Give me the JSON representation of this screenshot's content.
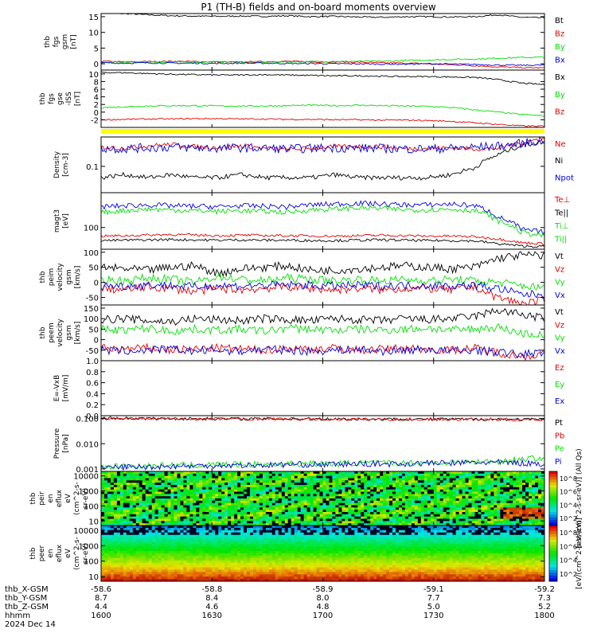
{
  "title": "P1 (TH-B) fields and on-board moments overview",
  "colors": {
    "black": "#000000",
    "red": "#e00000",
    "green": "#00e000",
    "blue": "#0000e0",
    "yellow": "#ffff00"
  },
  "chart_data": [
    {
      "type": "line",
      "ylabel": [
        "thb",
        "fgs",
        "gsm",
        "[nT]"
      ],
      "ylim": [
        -2,
        16
      ],
      "yticks": [
        15,
        10,
        5,
        0
      ],
      "series": [
        {
          "name": "Bt",
          "color": "red",
          "hidden": true
        },
        {
          "name": "Bt",
          "color": "black",
          "values": [
            16.2,
            16.0,
            15.6,
            15.3,
            15.2,
            15.1,
            15.2,
            15.1,
            15.3,
            15.0,
            15.1,
            14.9,
            14.8,
            15.0,
            15.0,
            14.9,
            15.0,
            15.6,
            14.8,
            14.6
          ]
        },
        {
          "name": "Bz",
          "color": "red",
          "values": [
            0.8,
            0.6,
            0.7,
            0.8,
            0.7,
            0.6,
            0.5,
            0.7,
            0.8,
            0.6,
            0.6,
            0.5,
            0.3,
            0.2,
            0.0,
            -0.3,
            -0.6,
            -1.0,
            -1.2,
            -1.3
          ]
        },
        {
          "name": "By",
          "color": "green",
          "values": [
            0.4,
            0.5,
            0.5,
            0.6,
            0.5,
            0.6,
            0.6,
            0.5,
            0.6,
            0.7,
            0.7,
            0.8,
            0.8,
            1.0,
            1.2,
            1.4,
            1.5,
            1.8,
            2.0,
            2.1
          ]
        },
        {
          "name": "Bx",
          "color": "blue",
          "values": [
            0.3,
            0.2,
            0.3,
            0.2,
            0.2,
            0.1,
            0.2,
            0.2,
            0.1,
            0.1,
            0.0,
            0.0,
            -0.1,
            -0.1,
            0.0,
            -0.1,
            -0.2,
            -0.4,
            -0.5,
            -0.4
          ]
        }
      ],
      "legend": [
        {
          "name": "Bt",
          "color": "black"
        },
        {
          "name": "Bz",
          "color": "red"
        },
        {
          "name": "By",
          "color": "green"
        },
        {
          "name": "Bx",
          "color": "blue"
        }
      ]
    },
    {
      "type": "line",
      "ylabel": [
        "thb",
        "fgs",
        "gse",
        "-ISS",
        "[nT]"
      ],
      "ylim": [
        -4,
        11
      ],
      "yticks": [
        10,
        8,
        6,
        4,
        2,
        0,
        -2
      ],
      "series": [
        {
          "name": "Bx",
          "color": "black",
          "values": [
            10.4,
            10.3,
            10.1,
            9.9,
            9.8,
            9.7,
            9.7,
            9.8,
            9.7,
            9.6,
            9.5,
            9.5,
            9.4,
            9.3,
            9.3,
            9.2,
            9.1,
            8.5,
            7.6,
            7.2
          ]
        },
        {
          "name": "By",
          "color": "green",
          "values": [
            1.2,
            1.4,
            1.6,
            1.7,
            1.7,
            1.6,
            1.6,
            1.6,
            1.7,
            1.8,
            1.7,
            1.8,
            1.7,
            1.6,
            1.5,
            1.2,
            0.6,
            0.0,
            -0.6,
            -1.0
          ]
        },
        {
          "name": "Bz",
          "color": "red",
          "values": [
            -2.0,
            -1.9,
            -1.8,
            -1.8,
            -1.7,
            -1.7,
            -1.8,
            -1.8,
            -1.9,
            -1.9,
            -2.0,
            -2.0,
            -2.1,
            -2.1,
            -2.2,
            -2.4,
            -2.8,
            -3.2,
            -3.6,
            -3.7
          ]
        }
      ],
      "legend": [
        {
          "name": "Bx",
          "color": "black"
        },
        {
          "name": "By",
          "color": "green"
        },
        {
          "name": "Bz",
          "color": "red"
        }
      ]
    },
    {
      "type": "line",
      "ylabel": [
        "Density",
        "[cm-3]"
      ],
      "scale": "log",
      "ylim": [
        0.02,
        0.6
      ],
      "yticks": [
        0.1
      ],
      "series": [
        {
          "name": "Ne",
          "color": "red",
          "values": [
            0.32,
            0.3,
            0.35,
            0.38,
            0.33,
            0.32,
            0.35,
            0.3,
            0.28,
            0.3,
            0.33,
            0.34,
            0.33,
            0.3,
            0.3,
            0.31,
            0.29,
            0.3,
            0.42,
            0.55
          ]
        },
        {
          "name": "Ni",
          "color": "black",
          "values": [
            0.05,
            0.06,
            0.05,
            0.06,
            0.05,
            0.05,
            0.06,
            0.05,
            0.05,
            0.05,
            0.06,
            0.05,
            0.05,
            0.05,
            0.05,
            0.06,
            0.09,
            0.2,
            0.35,
            0.45
          ]
        },
        {
          "name": "Npot",
          "color": "blue",
          "values": [
            0.3,
            0.29,
            0.31,
            0.32,
            0.31,
            0.3,
            0.31,
            0.3,
            0.29,
            0.3,
            0.31,
            0.3,
            0.3,
            0.29,
            0.29,
            0.3,
            0.32,
            0.34,
            0.4,
            0.5
          ]
        }
      ],
      "legend": [
        {
          "name": "Ne",
          "color": "red"
        },
        {
          "name": "Ni",
          "color": "black"
        },
        {
          "name": "Npot",
          "color": "blue"
        }
      ]
    },
    {
      "type": "line",
      "ylabel": [
        "magt3",
        "[eV]"
      ],
      "scale": "log",
      "ylim": [
        10,
        4000
      ],
      "yticks": [
        100
      ],
      "series": [
        {
          "name": "Te⊥",
          "color": "red",
          "values": [
            40,
            42,
            45,
            48,
            45,
            42,
            44,
            43,
            42,
            41,
            40,
            42,
            44,
            42,
            40,
            40,
            38,
            30,
            20,
            18
          ]
        },
        {
          "name": "Te||",
          "color": "black",
          "values": [
            25,
            26,
            27,
            28,
            27,
            26,
            27,
            26,
            26,
            25,
            25,
            26,
            27,
            26,
            25,
            25,
            24,
            18,
            14,
            13
          ]
        },
        {
          "name": "Ti⊥",
          "color": "blue",
          "values": [
            900,
            1000,
            1100,
            1000,
            950,
            900,
            1000,
            950,
            900,
            1100,
            1200,
            1300,
            1200,
            1100,
            1100,
            1200,
            1000,
            300,
            80,
            60
          ]
        },
        {
          "name": "Ti||",
          "color": "green",
          "values": [
            500,
            600,
            700,
            650,
            600,
            550,
            600,
            550,
            500,
            650,
            700,
            800,
            750,
            650,
            650,
            700,
            600,
            200,
            60,
            40
          ]
        }
      ],
      "legend": [
        {
          "name": "Te⊥",
          "color": "red"
        },
        {
          "name": "Te||",
          "color": "black"
        },
        {
          "name": "Ti⊥",
          "color": "green"
        },
        {
          "name": "Ti||",
          "color": "green"
        }
      ]
    },
    {
      "type": "line",
      "ylabel": [
        "thb",
        "peim",
        "velocity",
        "gsm",
        "[km/s]"
      ],
      "ylim": [
        -75,
        110
      ],
      "yticks": [
        100,
        50,
        0,
        -50
      ],
      "series": [
        {
          "name": "Vt",
          "color": "black",
          "values": [
            50,
            45,
            40,
            50,
            55,
            30,
            45,
            50,
            55,
            40,
            40,
            45,
            50,
            55,
            50,
            45,
            50,
            80,
            90,
            90
          ]
        },
        {
          "name": "Vz",
          "color": "red",
          "values": [
            -20,
            -25,
            -15,
            -20,
            -30,
            -20,
            -25,
            -20,
            -15,
            -20,
            -25,
            -20,
            -25,
            -20,
            -20,
            -25,
            -15,
            -50,
            -70,
            -60
          ]
        },
        {
          "name": "Vy",
          "color": "green",
          "values": [
            10,
            5,
            15,
            10,
            0,
            20,
            10,
            5,
            15,
            10,
            5,
            10,
            5,
            10,
            5,
            10,
            5,
            0,
            -10,
            -20
          ]
        },
        {
          "name": "Vx",
          "color": "blue",
          "values": [
            -10,
            -12,
            -8,
            -10,
            -15,
            -10,
            -12,
            -10,
            -8,
            -10,
            -12,
            -10,
            -12,
            -10,
            -10,
            -12,
            -10,
            -20,
            -40,
            -40
          ]
        }
      ],
      "legend": [
        {
          "name": "Vt",
          "color": "black"
        },
        {
          "name": "Vz",
          "color": "red"
        },
        {
          "name": "Vy",
          "color": "green"
        },
        {
          "name": "Vx",
          "color": "blue"
        }
      ]
    },
    {
      "type": "line",
      "ylabel": [
        "thb",
        "peem",
        "velocity",
        "gsm",
        "[km/s]"
      ],
      "ylim": [
        -100,
        165
      ],
      "yticks": [
        150,
        100,
        50,
        0,
        -50
      ],
      "series": [
        {
          "name": "Vt",
          "color": "black",
          "values": [
            95,
            100,
            90,
            85,
            100,
            95,
            90,
            100,
            95,
            90,
            100,
            95,
            90,
            100,
            95,
            100,
            110,
            140,
            120,
            100
          ]
        },
        {
          "name": "Vz",
          "color": "red",
          "values": [
            -40,
            -45,
            -40,
            -50,
            -45,
            -40,
            -45,
            -50,
            -40,
            -45,
            -40,
            -50,
            -45,
            -40,
            -45,
            -50,
            -40,
            -60,
            -80,
            -70
          ]
        },
        {
          "name": "Vy",
          "color": "green",
          "values": [
            50,
            45,
            55,
            40,
            50,
            45,
            50,
            40,
            55,
            50,
            45,
            50,
            45,
            50,
            55,
            45,
            50,
            60,
            30,
            20
          ]
        },
        {
          "name": "Vx",
          "color": "blue",
          "values": [
            -50,
            -55,
            -50,
            -45,
            -55,
            -50,
            -55,
            -45,
            -50,
            -55,
            -50,
            -45,
            -55,
            -50,
            -45,
            -55,
            -50,
            -60,
            -70,
            -60
          ]
        }
      ],
      "legend": [
        {
          "name": "Vt",
          "color": "black"
        },
        {
          "name": "Vz",
          "color": "red"
        },
        {
          "name": "Vy",
          "color": "green"
        },
        {
          "name": "Vx",
          "color": "blue"
        }
      ]
    },
    {
      "type": "line",
      "ylabel": [
        "E=-VxB",
        "[mV/m]"
      ],
      "ylim": [
        0,
        1
      ],
      "yticks": [
        1.0,
        0.8,
        0.6,
        0.4,
        0.2,
        0.0
      ],
      "ytickLabels": [
        "1.0",
        "0.8",
        "0.6",
        "0.4",
        "0.2",
        "0.0"
      ],
      "series": [],
      "legend": [
        {
          "name": "Ez",
          "color": "red"
        },
        {
          "name": "Ey",
          "color": "green"
        },
        {
          "name": "Ex",
          "color": "blue"
        }
      ]
    },
    {
      "type": "line",
      "ylabel": [
        "Pressure",
        "[nPa]"
      ],
      "scale": "log",
      "ylim": [
        0.0008,
        0.13
      ],
      "yticks": [
        0.1,
        0.01,
        0.001
      ],
      "ytickLabels": [
        "0.100",
        "0.010",
        "0.001"
      ],
      "series": [
        {
          "name": "Pt",
          "color": "black",
          "values": [
            0.104,
            0.102,
            0.1,
            0.099,
            0.098,
            0.098,
            0.097,
            0.098,
            0.097,
            0.096,
            0.096,
            0.095,
            0.095,
            0.094,
            0.094,
            0.094,
            0.093,
            0.094,
            0.092,
            0.092
          ]
        },
        {
          "name": "Pb",
          "color": "red",
          "values": [
            0.103,
            0.101,
            0.099,
            0.098,
            0.097,
            0.097,
            0.096,
            0.097,
            0.096,
            0.095,
            0.095,
            0.094,
            0.094,
            0.093,
            0.093,
            0.093,
            0.092,
            0.093,
            0.09,
            0.089
          ]
        },
        {
          "name": "Pe",
          "color": "green",
          "values": [
            0.0012,
            0.0013,
            0.0013,
            0.0014,
            0.0014,
            0.0015,
            0.0015,
            0.0015,
            0.0016,
            0.0016,
            0.0016,
            0.0017,
            0.0017,
            0.0017,
            0.0018,
            0.0018,
            0.0019,
            0.002,
            0.0024,
            0.0028
          ]
        },
        {
          "name": "Pi",
          "color": "blue",
          "values": [
            0.0011,
            0.0012,
            0.0012,
            0.0013,
            0.0013,
            0.0014,
            0.0014,
            0.0014,
            0.0015,
            0.0015,
            0.0015,
            0.0016,
            0.0016,
            0.0016,
            0.0017,
            0.0017,
            0.0018,
            0.0018,
            0.0017,
            0.0016
          ]
        }
      ],
      "legend": [
        {
          "name": "Pt",
          "color": "black"
        },
        {
          "name": "Pb",
          "color": "red"
        },
        {
          "name": "Pe",
          "color": "green"
        },
        {
          "name": "Pi",
          "color": "blue"
        }
      ]
    },
    {
      "type": "heatmap",
      "ylabel": [
        "thb",
        "peir",
        "en",
        "eflux",
        "eV",
        "(cm^2-s-",
        "sr-eV)"
      ],
      "scale": "log",
      "ylim": [
        5,
        20000
      ],
      "yticks": [
        10000,
        1000,
        100,
        10
      ],
      "colorbar": {
        "labels": [
          "10^8",
          "10^6",
          "10^4",
          "10^2"
        ],
        "title": "[eV/(cm^2-s-sr-eV)] (All Qs)"
      }
    },
    {
      "type": "heatmap",
      "ylabel": [
        "thb",
        "peer",
        "en",
        "eflux",
        "eV",
        "(cm^2-s-",
        "sr-eV)"
      ],
      "scale": "log",
      "ylim": [
        5,
        20000
      ],
      "yticks": [
        10000,
        1000,
        100,
        10
      ],
      "colorbar": {
        "labels": [
          "10^8",
          "10^6",
          "10^4",
          "10^2"
        ],
        "title": "[eV/(cm^2-s-sr-eV)]"
      }
    }
  ],
  "xaxis": {
    "rows": [
      {
        "label": "thb_X-GSM",
        "values": [
          "-58.6",
          "-58.8",
          "-58.9",
          "-59.1",
          "-59.2"
        ]
      },
      {
        "label": "thb_Y-GSM",
        "values": [
          "8.7",
          "8.4",
          "8.0",
          "7.7",
          "7.3"
        ]
      },
      {
        "label": "thb_Z-GSM",
        "values": [
          "4.4",
          "4.6",
          "4.8",
          "5.0",
          "5.2"
        ]
      },
      {
        "label": "hhmm",
        "values": [
          "1600",
          "1630",
          "1700",
          "1730",
          "1800"
        ]
      },
      {
        "label": "2024 Dec 14",
        "values": []
      }
    ]
  }
}
